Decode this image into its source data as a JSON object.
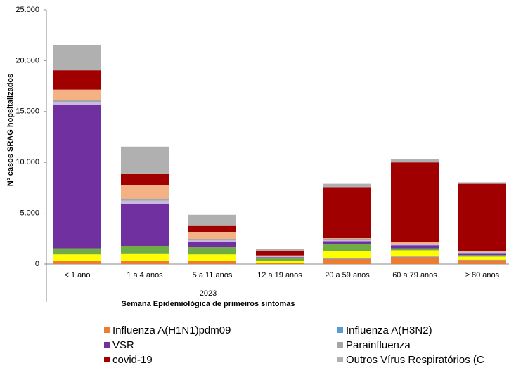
{
  "chart_data": {
    "type": "stacked_bar",
    "ylabel": "Nº casos SRAG hopsitalizados",
    "xlabel_top": "2023",
    "xlabel": "Semana Epidemiológica de primeiros sintomas",
    "categories": [
      "< 1 ano",
      "1 a 4 anos",
      "5 a 11 anos",
      "12 a 19 anos",
      "20 a 59 anos",
      "60 a 79 anos",
      "≥ 80 anos"
    ],
    "ylim": [
      0,
      25000
    ],
    "yticks": [
      0,
      {
        "value": 5000,
        "label": "5.000"
      },
      {
        "value": 10000,
        "label": "10.000"
      },
      {
        "value": 15000,
        "label": "15.000"
      },
      {
        "value": 20000,
        "label": "20.000"
      },
      {
        "value": 25000,
        "label": "25.000"
      }
    ],
    "series": [
      {
        "name": "Influenza A(H1N1)pdm09",
        "color": "#ed7d31",
        "values": [
          300,
          300,
          300,
          100,
          500,
          700,
          400
        ]
      },
      {
        "name": "Influenza A(H3N2)",
        "color": "#5b9bd5",
        "values": [
          50,
          50,
          50,
          20,
          50,
          50,
          30
        ]
      },
      {
        "color": "#ffff00",
        "values": [
          600,
          700,
          600,
          200,
          700,
          600,
          300
        ]
      },
      {
        "color": "#70ad47",
        "values": [
          600,
          700,
          700,
          250,
          700,
          200,
          150
        ]
      },
      {
        "name": "VSR",
        "color": "#7030a0",
        "values": [
          14100,
          4200,
          500,
          100,
          300,
          300,
          200
        ]
      },
      {
        "color": "#c9b8e0",
        "values": [
          300,
          300,
          200,
          50,
          100,
          100,
          80
        ]
      },
      {
        "name": "Parainfluenza",
        "color": "#a5a5a5",
        "values": [
          200,
          200,
          100,
          30,
          100,
          50,
          40
        ]
      },
      {
        "color": "#f4b183",
        "values": [
          1000,
          1300,
          700,
          100,
          100,
          200,
          100
        ]
      },
      {
        "name": "covid-19",
        "color": "#a00000",
        "values": [
          1900,
          1100,
          600,
          450,
          4950,
          7800,
          6600
        ]
      },
      {
        "name": "Outros Vírus Respiratórios (C",
        "color": "#b0b0b0",
        "values": [
          2500,
          2700,
          1100,
          150,
          400,
          350,
          150
        ]
      }
    ]
  }
}
